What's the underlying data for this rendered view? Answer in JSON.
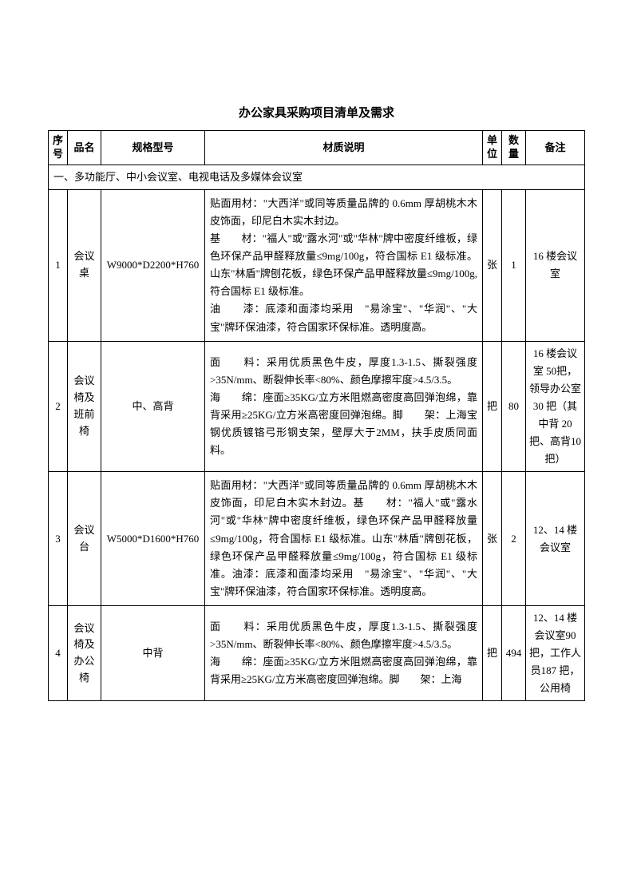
{
  "title": "办公家具采购项目清单及需求",
  "headers": {
    "seq": "序号",
    "name": "品名",
    "spec": "规格型号",
    "desc": "材质说明",
    "unit": "单位",
    "qty": "数量",
    "note": "备注"
  },
  "section1": "一、多功能厅、中小会议室、电视电话及多媒体会议室",
  "rows": [
    {
      "seq": "1",
      "name": "会议桌",
      "spec": "W9000*D2200*H760",
      "desc": "贴面用材：\"大西洋\"或同等质量品牌的 0.6mm 厚胡桃木木皮饰面，印尼白木实木封边。\n基　　材：\"福人\"或\"露水河\"或\"华林\"牌中密度纤维板，绿色环保产品甲醛释放量≤9mg/100g，符合国标 E1 级标准。山东\"林盾\"牌刨花板，绿色环保产品甲醛释放量≤9mg/100g,符合国标 E1 级标准。\n油　　漆：底漆和面漆均采用　\"易涂宝\"、\"华润\"、\"大宝\"牌环保油漆，符合国家环保标准。透明度高。",
      "unit": "张",
      "qty": "1",
      "note": "16 楼会议室"
    },
    {
      "seq": "2",
      "name": "会议椅及班前椅",
      "spec": "中、高背",
      "desc": "面　　料：采用优质黑色牛皮，厚度1.3-1.5、撕裂强度>35N/mm、断裂伸长率<80%、颜色摩擦牢度>4.5/3.5。\n海　　绵：座面≥35KG/立方米阻燃高密度高回弹泡绵，靠背采用≥25KG/立方米高密度回弹泡绵。脚　　架：上海宝钢优质镀铬弓形钢支架，壁厚大于2MM，扶手皮质同面料。",
      "unit": "把",
      "qty": "80",
      "note": "16 楼会议室 50把，领导办公室30 把（其中背 20把、高背10 把）"
    },
    {
      "seq": "3",
      "name": "会议台",
      "spec": "W5000*D1600*H760",
      "desc": "贴面用材：\"大西洋\"或同等质量品牌的 0.6mm 厚胡桃木木皮饰面，印尼白木实木封边。基　　材：\"福人\"或\"露水河\"或\"华林\"牌中密度纤维板，绿色环保产品甲醛释放量≤9mg/100g，符合国标 E1 级标准。山东\"林盾\"牌刨花板，绿色环保产品甲醛释放量≤9mg/100g，符合国标 E1 级标准。油漆：底漆和面漆均采用　\"易涂宝\"、\"华润\"、\"大宝\"牌环保油漆，符合国家环保标准。透明度高。",
      "unit": "张",
      "qty": "2",
      "note": "12、14 楼会议室"
    },
    {
      "seq": "4",
      "name": "会议椅及办公椅",
      "spec": "中背",
      "desc": "面　　料：采用优质黑色牛皮，厚度1.3-1.5、撕裂强度>35N/mm、断裂伸长率<80%、颜色摩擦牢度>4.5/3.5。\n海　　绵：座面≥35KG/立方米阻燃高密度高回弹泡绵，靠背采用≥25KG/立方米高密度回弹泡绵。脚　　架：上海",
      "unit": "把",
      "qty": "494",
      "note": "12、14 楼会议室90 把，工作人员187 把，公用椅"
    }
  ]
}
